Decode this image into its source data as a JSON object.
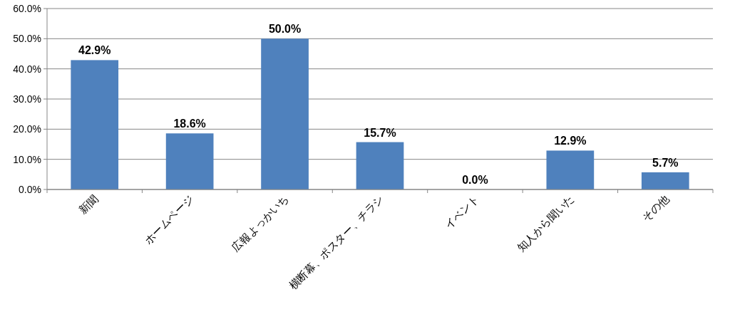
{
  "chart_data": {
    "type": "bar",
    "categories": [
      "新聞",
      "ホームページ",
      "広報よっかいち",
      "横断幕、ポスター、チラシ",
      "イベント",
      "知人から聞いた",
      "その他"
    ],
    "values": [
      42.9,
      18.6,
      50.0,
      15.7,
      0.0,
      12.9,
      5.7
    ],
    "value_labels": [
      "42.9%",
      "18.6%",
      "50.0%",
      "15.7%",
      "0.0%",
      "12.9%",
      "5.7%"
    ],
    "color": "#4f81bd",
    "ylim": [
      0,
      60
    ],
    "yticks": [
      {
        "value": 0,
        "label": "0.0%"
      },
      {
        "value": 10,
        "label": "10.0%"
      },
      {
        "value": 20,
        "label": "20.0%"
      },
      {
        "value": 30,
        "label": "30.0%"
      },
      {
        "value": 40,
        "label": "40.0%"
      },
      {
        "value": 50,
        "label": "50.0%"
      },
      {
        "value": 60,
        "label": "60.0%"
      }
    ],
    "grid": "y"
  }
}
